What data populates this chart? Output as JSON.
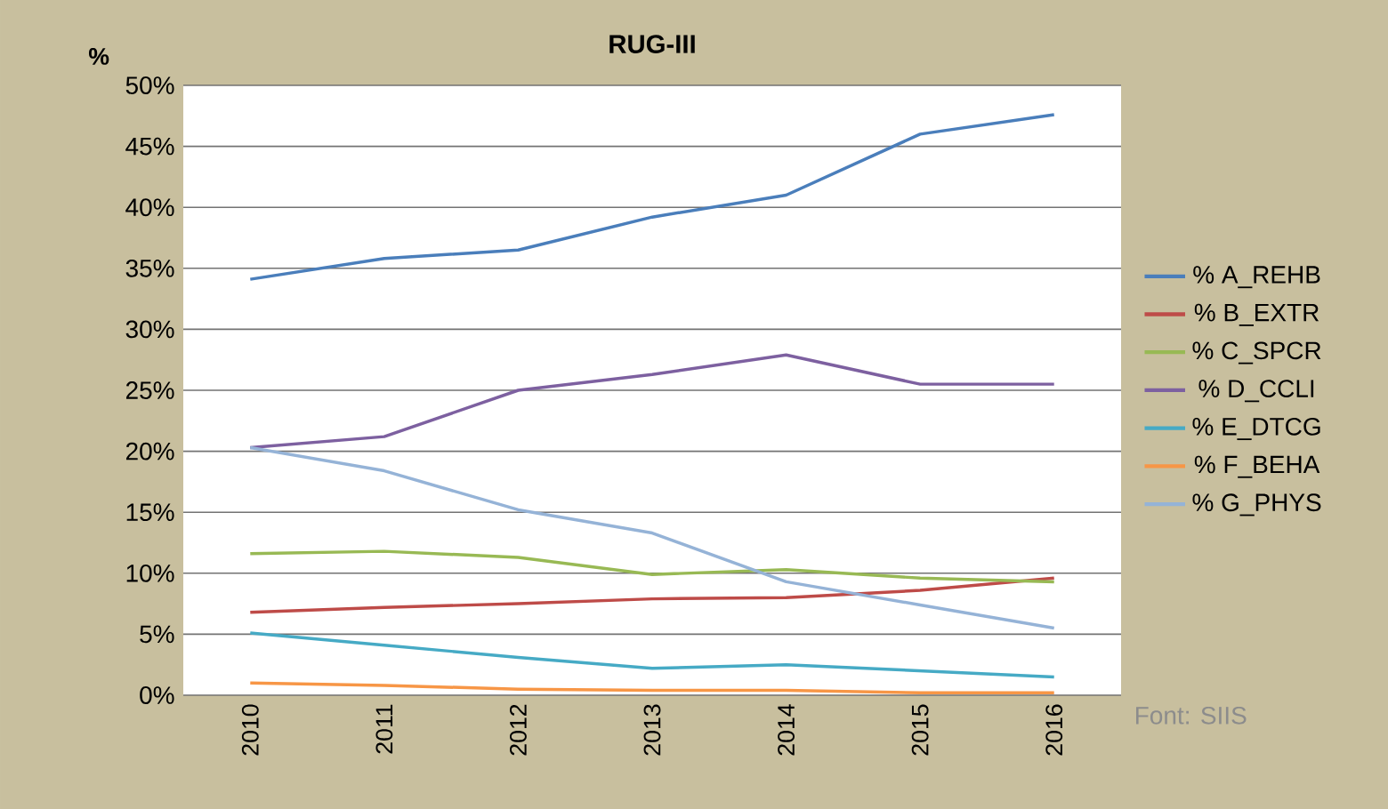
{
  "chart_data": {
    "type": "line",
    "title": "RUG-III",
    "ylabel": "%",
    "categories": [
      "2010",
      "2011",
      "2012",
      "2013",
      "2014",
      "2015",
      "2016"
    ],
    "series": [
      {
        "name": "% A_REHB",
        "color": "#4a7ebb",
        "values": [
          34.1,
          35.8,
          36.5,
          39.2,
          41,
          46,
          47.6
        ]
      },
      {
        "name": "% B_EXTR",
        "color": "#be4b48",
        "values": [
          6.8,
          7.2,
          7.5,
          7.9,
          8,
          8.6,
          9.6
        ]
      },
      {
        "name": "% C_SPCR",
        "color": "#98b954",
        "values": [
          11.6,
          11.8,
          11.3,
          9.9,
          10.3,
          9.6,
          9.3
        ]
      },
      {
        "name": "% D_CCLI",
        "color": "#7d60a0",
        "values": [
          20.3,
          21.2,
          25,
          26.3,
          27.9,
          25.5,
          25.5
        ]
      },
      {
        "name": "% E_DTCG",
        "color": "#46aac5",
        "values": [
          5.1,
          4.1,
          3.1,
          2.2,
          2.5,
          2,
          1.5
        ]
      },
      {
        "name": "% F_BEHA",
        "color": "#f79646",
        "values": [
          1,
          0.8,
          0.5,
          0.4,
          0.4,
          0.2,
          0.2
        ]
      },
      {
        "name": "% G_PHYS",
        "color": "#95b3d7",
        "values": [
          20.3,
          18.4,
          15.2,
          13.3,
          9.3,
          7.4,
          5.5
        ]
      }
    ],
    "ylim": [
      0,
      50
    ],
    "yticks": [
      {
        "value": 0,
        "label": "0%"
      },
      {
        "value": 5,
        "label": "5%"
      },
      {
        "value": 10,
        "label": "10%"
      },
      {
        "value": 15,
        "label": "15%"
      },
      {
        "value": 20,
        "label": "20%"
      },
      {
        "value": 25,
        "label": "25%"
      },
      {
        "value": 30,
        "label": "30%"
      },
      {
        "value": 35,
        "label": "35%"
      },
      {
        "value": 40,
        "label": "40%"
      },
      {
        "value": 45,
        "label": "45%"
      },
      {
        "value": 50,
        "label": "50%"
      }
    ],
    "grid": "y",
    "legend": "right",
    "marker": "none",
    "line_style": "solid",
    "annotations": [
      "Font: SIIS"
    ]
  }
}
